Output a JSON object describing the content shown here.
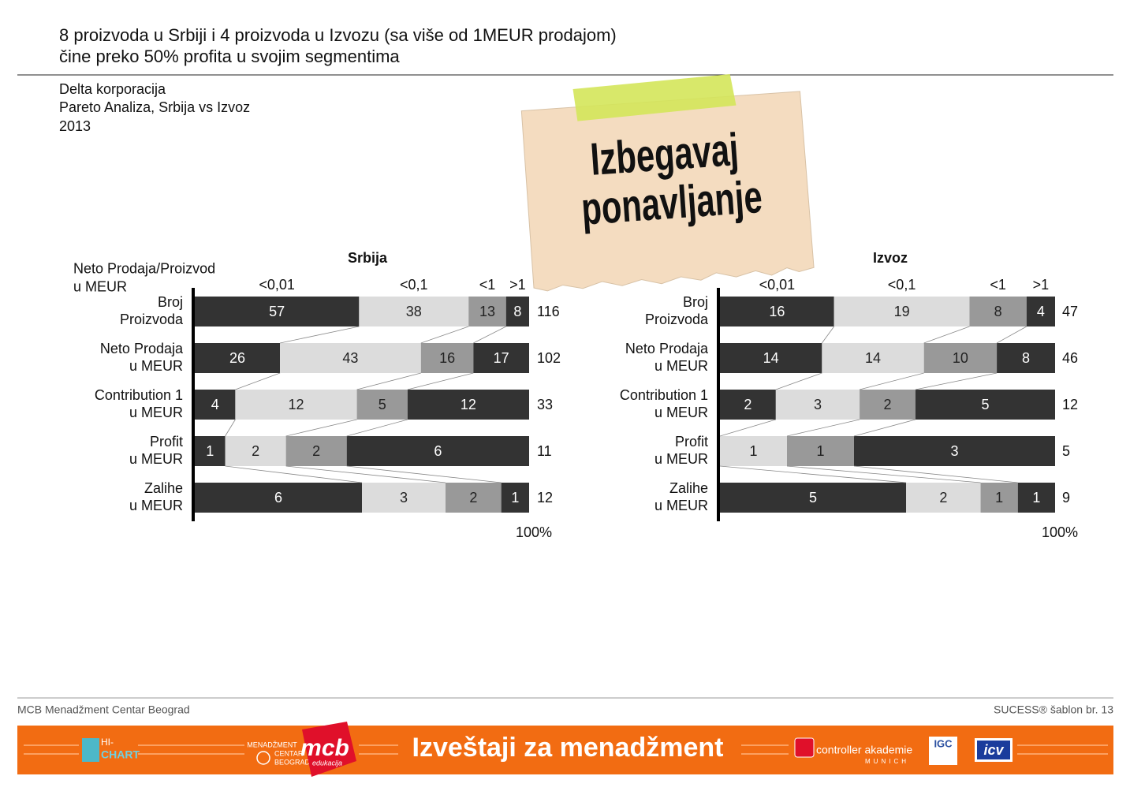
{
  "header": {
    "title_lines": [
      "8 proizvoda u Srbiji i 4 proizvoda u Izvozu (sa više od 1MEUR prodajom)",
      "čine preko 50% profita u svojim segmentima"
    ],
    "subtitle_lines": [
      "Delta korporacija",
      "Pareto Analiza, Srbija vs Izvoz",
      "2013"
    ]
  },
  "note": {
    "lines": [
      "Izbegavaj",
      "ponavljanje"
    ]
  },
  "chart_data": [
    {
      "type": "bar",
      "orientation": "horizontal",
      "stacking": "percent",
      "title": "Srbija",
      "ylabel": "Neto Prodaja/Proizvod\nu MEUR",
      "categories": [
        "Broj\nProizvoda",
        "Neto Prodaja\nu MEUR",
        "Contribution 1\nu MEUR",
        "Profit\nu MEUR",
        "Zalihe\nu MEUR"
      ],
      "series": [
        {
          "name": "<0,01",
          "color": "#333333",
          "values": [
            57,
            26,
            4,
            1,
            6
          ]
        },
        {
          "name": "<0,1",
          "color": "#dcdcdc",
          "values": [
            38,
            43,
            12,
            2,
            3
          ]
        },
        {
          "name": "<1",
          "color": "#999999",
          "values": [
            13,
            16,
            5,
            2,
            2
          ]
        },
        {
          "name": ">1",
          "color": "#333333",
          "values": [
            8,
            17,
            12,
            6,
            1
          ]
        }
      ],
      "totals": [
        116,
        102,
        33,
        11,
        12
      ],
      "xlim": [
        0,
        100
      ],
      "xticks": [
        {
          "value": 100,
          "label": "100%"
        }
      ]
    },
    {
      "type": "bar",
      "orientation": "horizontal",
      "stacking": "percent",
      "title": "Izvoz",
      "categories": [
        "Broj\nProizvoda",
        "Neto Prodaja\nu MEUR",
        "Contribution 1\nu MEUR",
        "Profit\nu MEUR",
        "Zalihe\nu MEUR"
      ],
      "series": [
        {
          "name": "<0,01",
          "color": "#333333",
          "values": [
            16,
            14,
            2,
            0,
            5
          ]
        },
        {
          "name": "<0,1",
          "color": "#dcdcdc",
          "values": [
            19,
            14,
            3,
            1,
            2
          ]
        },
        {
          "name": "<1",
          "color": "#999999",
          "values": [
            8,
            10,
            2,
            1,
            1
          ]
        },
        {
          "name": ">1",
          "color": "#333333",
          "values": [
            4,
            8,
            5,
            3,
            1
          ]
        }
      ],
      "totals": [
        47,
        46,
        12,
        5,
        9
      ],
      "xlim": [
        0,
        100
      ],
      "xticks": [
        {
          "value": 100,
          "label": "100%"
        }
      ]
    }
  ],
  "footer": {
    "left": "MCB Menadžment Centar Beograd",
    "right": "SUCESS® šablon br. 13",
    "banner": "Izveštaji za menadžment",
    "logos": [
      "HI-",
      "CHART",
      "MENADŽMENT",
      "CENTAR",
      "BEOGRAD",
      "mcb",
      "edukacija",
      "controller akademie",
      "MUNICH",
      "IGC",
      "icv"
    ]
  }
}
